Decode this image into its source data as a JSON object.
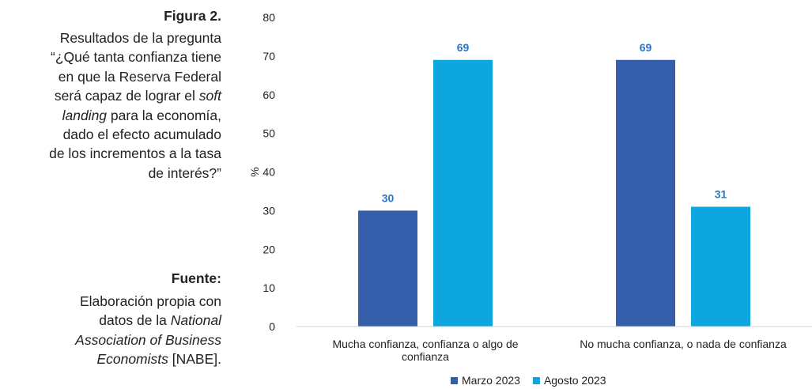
{
  "sidebar": {
    "figure_label": "Figura 2.",
    "figure_caption_lines": [
      "Resultados de la pregunta",
      "“¿Qué tanta confianza tiene",
      "en que la Reserva Federal",
      "será capaz de lograr el *soft*",
      "*landing* para la economía,",
      "dado el efecto acumulado",
      "de los incrementos a la tasa",
      "de interés?”"
    ],
    "source_label": "Fuente:",
    "source_lines": [
      "Elaboración propia con",
      "datos de la *National*",
      "*Association of Business*",
      "*Economists* [NABE]."
    ]
  },
  "chart_data": {
    "type": "bar",
    "ylabel": "%",
    "ylim": [
      0,
      80
    ],
    "yticks": [
      0,
      10,
      20,
      30,
      40,
      50,
      60,
      70,
      80
    ],
    "categories": [
      [
        "Mucha confianza, confianza o algo de",
        "confianza"
      ],
      [
        "No mucha confianza, o nada de confianza"
      ]
    ],
    "series": [
      {
        "name": "Marzo 2023",
        "values": [
          30,
          69
        ],
        "color": "#345ea9"
      },
      {
        "name": "Agosto 2023",
        "values": [
          69,
          31
        ],
        "color": "#0ea6de"
      }
    ],
    "data_label_color": "#2f74c4",
    "grid": false,
    "legend_position": "bottom"
  }
}
